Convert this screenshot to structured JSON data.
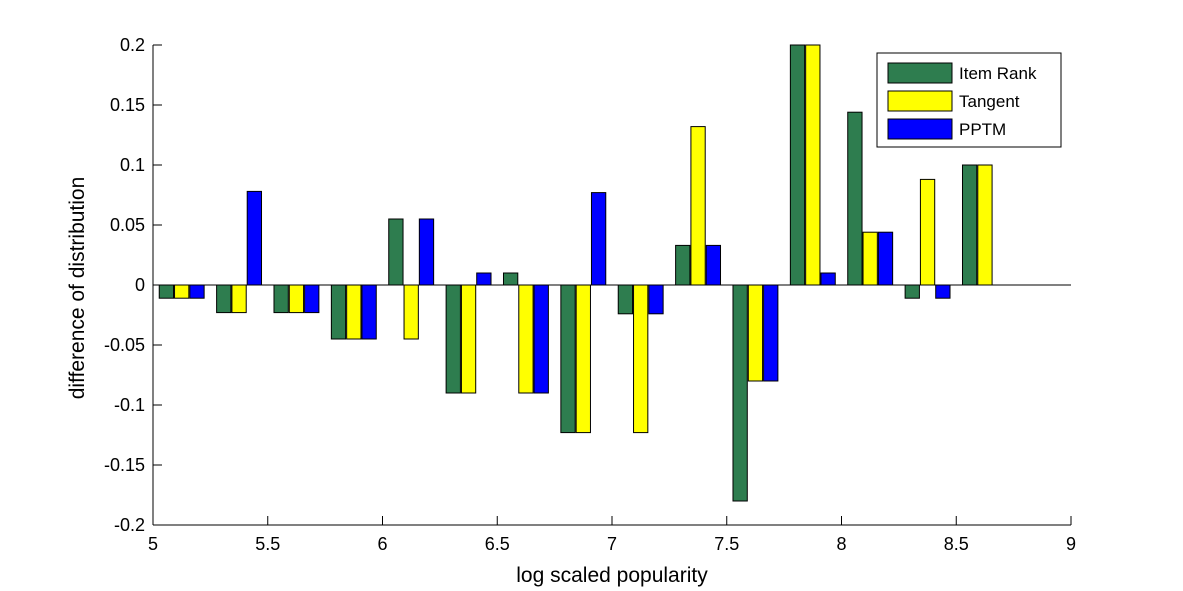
{
  "chart_data": {
    "type": "bar",
    "xlabel": "log scaled popularity",
    "ylabel": "difference of distribution",
    "xlim": [
      5,
      9
    ],
    "ylim": [
      -0.2,
      0.2
    ],
    "xticks": [
      "5",
      "5.5",
      "6",
      "6.5",
      "7",
      "7.5",
      "8",
      "8.5",
      "9"
    ],
    "yticks": [
      "-0.2",
      "-0.15",
      "-0.1",
      "-0.05",
      "0",
      "0.05",
      "0.1",
      "0.15",
      "0.2"
    ],
    "legend_position": "top-right",
    "x": [
      5.125,
      5.375,
      5.625,
      5.875,
      6.125,
      6.375,
      6.625,
      6.875,
      7.125,
      7.375,
      7.625,
      7.875,
      8.125,
      8.375,
      8.625
    ],
    "series": [
      {
        "name": "Item Rank",
        "color": "#2e7d4f",
        "values": [
          -0.011,
          -0.023,
          -0.023,
          -0.045,
          0.055,
          -0.09,
          0.01,
          -0.123,
          -0.024,
          0.033,
          -0.18,
          0.2,
          0.144,
          -0.011,
          0.1
        ]
      },
      {
        "name": "Tangent",
        "color": "#ffff00",
        "values": [
          -0.011,
          -0.023,
          -0.023,
          -0.045,
          -0.045,
          -0.09,
          -0.09,
          -0.123,
          -0.123,
          0.132,
          -0.08,
          0.2,
          0.044,
          0.088,
          0.1
        ]
      },
      {
        "name": "PPTM",
        "color": "#0000ff",
        "values": [
          -0.011,
          0.078,
          -0.023,
          -0.045,
          0.055,
          0.01,
          -0.09,
          0.077,
          -0.024,
          0.033,
          -0.08,
          0.01,
          0.044,
          -0.011,
          null
        ]
      }
    ]
  }
}
